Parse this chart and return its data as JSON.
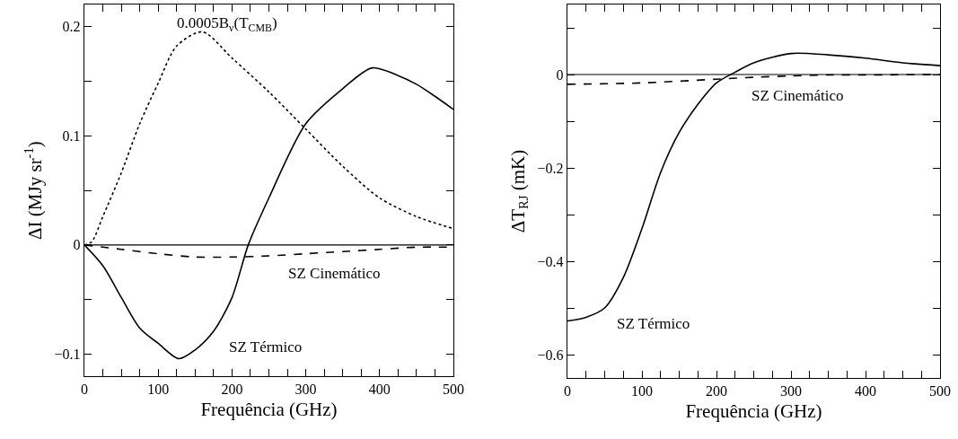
{
  "chart_data": [
    {
      "type": "line",
      "xlabel": "Frequência (GHz)",
      "ylabel": "ΔI (MJy sr$^{-1}$)",
      "xlim": [
        0,
        500
      ],
      "ylim": [
        -0.12,
        0.22
      ],
      "xticks": [
        0,
        {
          "value": 25,
          "label": null
        },
        {
          "value": 50,
          "label": null
        },
        {
          "value": 75,
          "label": null
        },
        100,
        {
          "value": 125,
          "label": null
        },
        {
          "value": 150,
          "label": null
        },
        {
          "value": 175,
          "label": null
        },
        200,
        {
          "value": 225,
          "label": null
        },
        {
          "value": 250,
          "label": null
        },
        {
          "value": 275,
          "label": null
        },
        300,
        {
          "value": 325,
          "label": null
        },
        {
          "value": 350,
          "label": null
        },
        {
          "value": 375,
          "label": null
        },
        400,
        {
          "value": 425,
          "label": null
        },
        {
          "value": 450,
          "label": null
        },
        {
          "value": 475,
          "label": null
        },
        500
      ],
      "yticks": [
        -0.1,
        {
          "value": -0.05,
          "label": null
        },
        0,
        {
          "value": 0.05,
          "label": null
        },
        0.1,
        {
          "value": 0.15,
          "label": null
        },
        0.2
      ],
      "grid": false,
      "marker": "none",
      "ref_lines": [
        {
          "axis": "y",
          "value": 0,
          "color": "#000000"
        }
      ],
      "series": [
        {
          "color": "#000000",
          "line_style": "solid",
          "x": [
            0,
            25,
            50,
            75,
            100,
            128,
            150,
            175,
            200,
            222,
            250,
            300,
            350,
            390,
            425,
            450,
            475,
            500
          ],
          "values": [
            0,
            -0.019,
            -0.048,
            -0.076,
            -0.09,
            -0.104,
            -0.096,
            -0.079,
            -0.048,
            0,
            0.043,
            0.111,
            0.143,
            0.162,
            0.155,
            0.147,
            0.136,
            0.124
          ]
        },
        {
          "color": "#000000",
          "line_style": "dotted",
          "x": [
            0,
            10,
            25,
            50,
            75,
            100,
            125,
            160,
            200,
            250,
            300,
            350,
            400,
            450,
            500
          ],
          "values": [
            0,
            0.003,
            0.026,
            0.066,
            0.111,
            0.148,
            0.182,
            0.195,
            0.171,
            0.14,
            0.106,
            0.072,
            0.043,
            0.026,
            0.015
          ]
        },
        {
          "color": "#000000",
          "line_style": "dashed",
          "x": [
            0,
            50,
            100,
            150,
            200,
            250,
            300,
            350,
            400,
            450,
            500
          ],
          "values": [
            0,
            -0.004,
            -0.008,
            -0.011,
            -0.011,
            -0.01,
            -0.008,
            -0.006,
            -0.004,
            -0.002,
            -0.002
          ]
        }
      ],
      "annotations": [
        "0.0005B$_{ν}$(T$_{CMB}$)",
        "SZ Cinemático",
        "SZ Térmico"
      ]
    },
    {
      "type": "line",
      "xlabel": "Frequência (GHz)",
      "ylabel": "ΔT$_{RJ}$ (mK)",
      "xlim": [
        0,
        500
      ],
      "ylim": [
        -0.65,
        0.15
      ],
      "xticks": [
        0,
        {
          "value": 25,
          "label": null
        },
        {
          "value": 50,
          "label": null
        },
        {
          "value": 75,
          "label": null
        },
        100,
        {
          "value": 125,
          "label": null
        },
        {
          "value": 150,
          "label": null
        },
        {
          "value": 175,
          "label": null
        },
        200,
        {
          "value": 225,
          "label": null
        },
        {
          "value": 250,
          "label": null
        },
        {
          "value": 275,
          "label": null
        },
        300,
        {
          "value": 325,
          "label": null
        },
        {
          "value": 350,
          "label": null
        },
        {
          "value": 375,
          "label": null
        },
        400,
        {
          "value": 425,
          "label": null
        },
        {
          "value": 450,
          "label": null
        },
        {
          "value": 475,
          "label": null
        },
        500
      ],
      "yticks": [
        -0.6,
        {
          "value": -0.5,
          "label": null
        },
        -0.4,
        {
          "value": -0.3,
          "label": null
        },
        -0.2,
        {
          "value": -0.1,
          "label": null
        },
        0,
        {
          "value": 0.1,
          "label": null
        }
      ],
      "grid": false,
      "marker": "none",
      "ref_lines": [
        {
          "axis": "y",
          "value": 0,
          "color": "#000000"
        }
      ],
      "series": [
        {
          "color": "#000000",
          "line_style": "solid",
          "x": [
            0,
            25,
            50,
            75,
            100,
            125,
            150,
            175,
            200,
            225,
            250,
            300,
            350,
            400,
            450,
            500
          ],
          "values": [
            -0.528,
            -0.52,
            -0.5,
            -0.435,
            -0.33,
            -0.21,
            -0.124,
            -0.064,
            -0.018,
            0.005,
            0.025,
            0.045,
            0.042,
            0.035,
            0.025,
            0.019
          ]
        },
        {
          "color": "#000000",
          "line_style": "dashed",
          "x": [
            0,
            100,
            200,
            250,
            300,
            350,
            400,
            500
          ],
          "values": [
            -0.021,
            -0.018,
            -0.01,
            -0.006,
            -0.003,
            -0.001,
            -0.001,
            0
          ]
        }
      ],
      "annotations": [
        "SZ Cinemático",
        "SZ Térmico"
      ]
    }
  ]
}
